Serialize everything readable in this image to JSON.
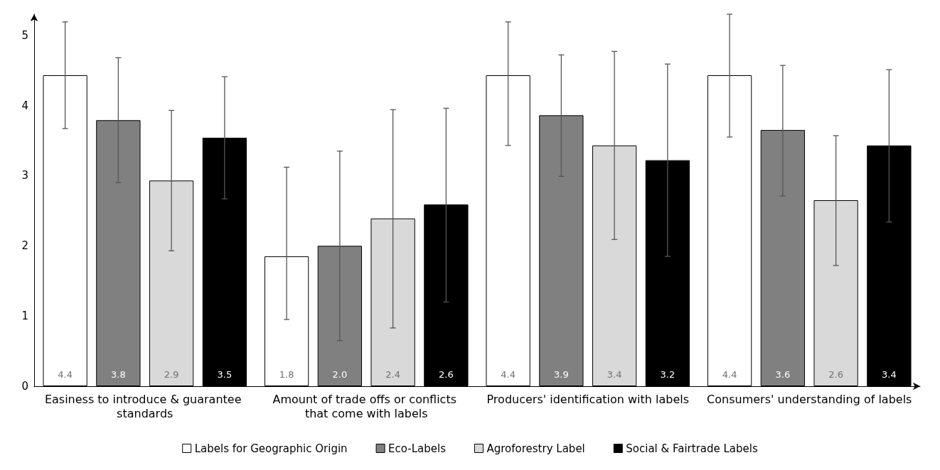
{
  "chart_data": {
    "type": "bar",
    "categories": [
      "Easiness to introduce & guarantee standards",
      "Amount of trade offs or conflicts that come with labels",
      "Producers' identification with labels",
      "Consumers' understanding of labels"
    ],
    "series": [
      {
        "name": "Labels for Geographic Origin",
        "color": "#ffffff",
        "values": [
          4.43,
          1.85,
          4.43,
          4.43
        ],
        "value_labels": [
          "4.4",
          "1.8",
          "4.4",
          "4.4"
        ],
        "errors": [
          [
            3.67,
            5.19
          ],
          [
            0.95,
            3.12
          ],
          [
            3.43,
            5.19
          ],
          [
            3.55,
            5.3
          ]
        ]
      },
      {
        "name": "Eco-Labels",
        "color": "#808080",
        "values": [
          3.79,
          2.0,
          3.86,
          3.65
        ],
        "value_labels": [
          "3.8",
          "2.0",
          "3.9",
          "3.6"
        ],
        "errors": [
          [
            2.9,
            4.68
          ],
          [
            0.65,
            3.35
          ],
          [
            2.99,
            4.72
          ],
          [
            2.71,
            4.57
          ]
        ]
      },
      {
        "name": "Agroforestry Label",
        "color": "#d9d9d9",
        "values": [
          2.93,
          2.39,
          3.43,
          2.65
        ],
        "value_labels": [
          "2.9",
          "2.4",
          "3.4",
          "2.6"
        ],
        "errors": [
          [
            1.93,
            3.93
          ],
          [
            0.83,
            3.94
          ],
          [
            2.09,
            4.77
          ],
          [
            1.72,
            3.57
          ]
        ]
      },
      {
        "name": "Social & Fairtrade Labels",
        "color": "#000000",
        "values": [
          3.54,
          2.59,
          3.22,
          3.43
        ],
        "value_labels": [
          "3.5",
          "2.6",
          "3.2",
          "3.4"
        ],
        "errors": [
          [
            2.67,
            4.41
          ],
          [
            1.2,
            3.96
          ],
          [
            1.85,
            4.59
          ],
          [
            2.34,
            4.51
          ]
        ]
      }
    ],
    "ylim": [
      0,
      5.3
    ],
    "yticks": [
      0,
      1,
      2,
      3,
      4,
      5
    ],
    "grid": false,
    "legend": "bottom"
  }
}
